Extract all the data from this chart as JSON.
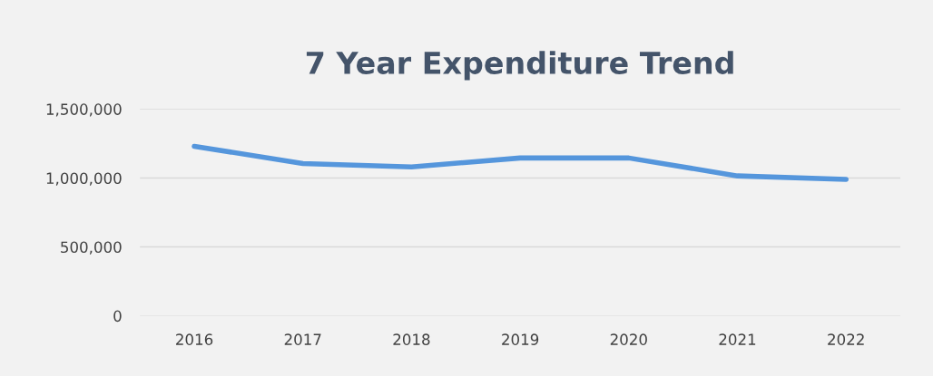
{
  "chart_data": {
    "type": "line",
    "title": "7 Year Expenditure Trend",
    "categories": [
      "2016",
      "2017",
      "2018",
      "2019",
      "2020",
      "2021",
      "2022"
    ],
    "series": [
      {
        "color": "#5596dc",
        "values": [
          1230000,
          1105000,
          1080000,
          1145000,
          1145000,
          1015000,
          990000
        ]
      }
    ],
    "ylim": [
      0,
      1500000
    ],
    "yticks": [
      {
        "value": 0,
        "label": "0"
      },
      {
        "value": 500000,
        "label": "500,000"
      },
      {
        "value": 1000000,
        "label": "1,000,000"
      },
      {
        "value": 1500000,
        "label": "1,500,000"
      }
    ],
    "grid": "y",
    "marker": "none",
    "line_style": "solid"
  }
}
